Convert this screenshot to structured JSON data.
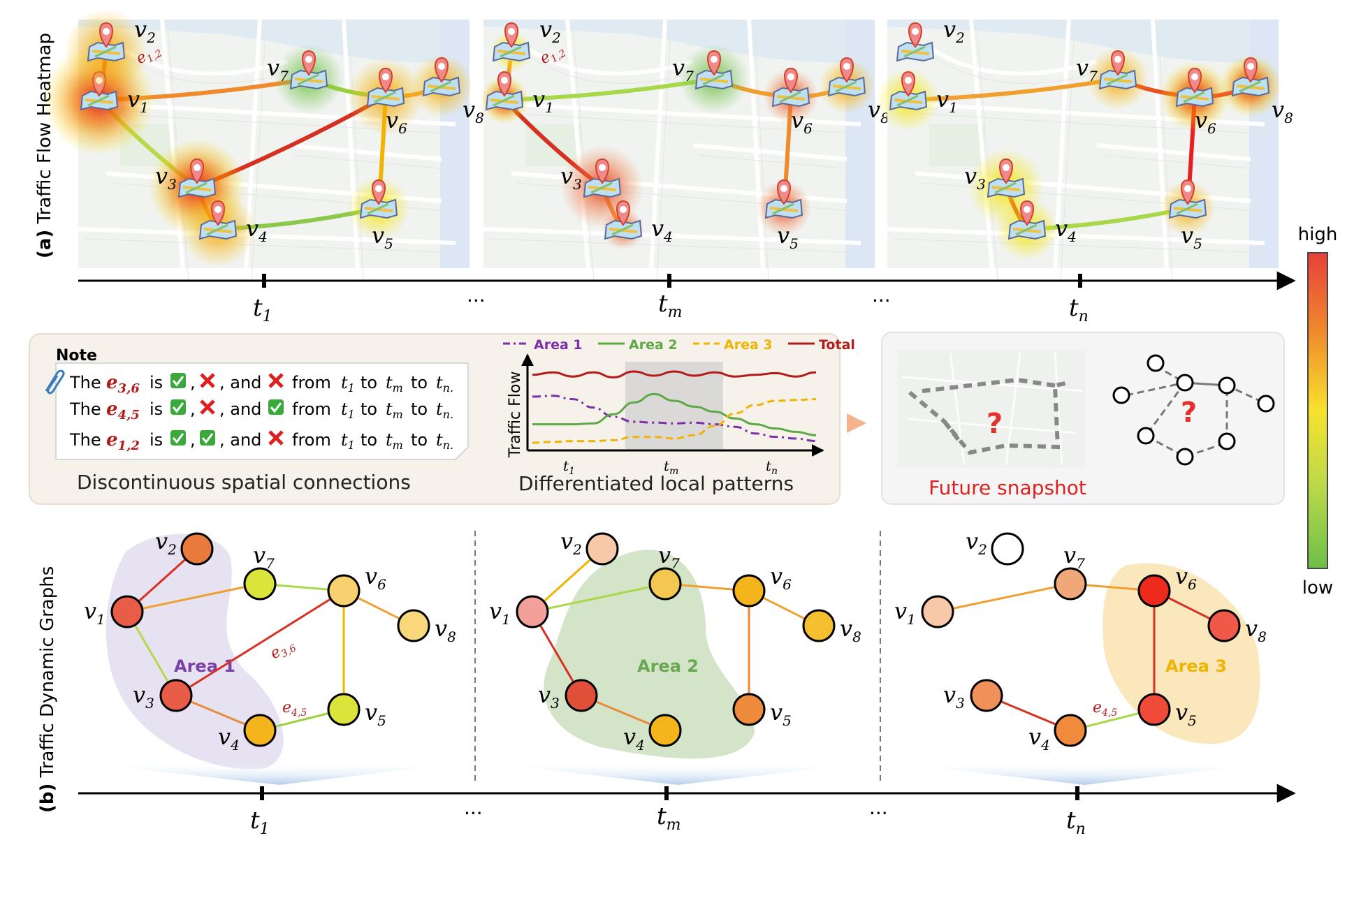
{
  "section_a": {
    "label_bold": "(a)",
    "label": "Traffic Flow Heatmap",
    "ticks": [
      "t",
      "t",
      "t"
    ],
    "tick_subs": [
      "1",
      "m",
      "n"
    ],
    "ellipsis": "..."
  },
  "section_b": {
    "label_bold": "(b)",
    "label": "Traffic Dynamic Graphs",
    "ticks": [
      "t",
      "t",
      "t"
    ],
    "tick_subs": [
      "1",
      "m",
      "n"
    ],
    "ellipsis": "..."
  },
  "node_letter": "v",
  "node_subs": [
    "1",
    "2",
    "3",
    "4",
    "5",
    "6",
    "7",
    "8"
  ],
  "note": {
    "title": "Note",
    "lines": [
      {
        "edge_sub": "3,6",
        "marks": [
          "check",
          "cross",
          "cross"
        ]
      },
      {
        "edge_sub": "4,5",
        "marks": [
          "check",
          "cross",
          "check"
        ]
      },
      {
        "edge_sub": "1,2",
        "marks": [
          "check",
          "check",
          "cross"
        ]
      }
    ],
    "word_the": "The",
    "word_is": "is",
    "word_and": "and",
    "word_from": "from",
    "word_to": "to",
    "caption": "Discontinuous spatial connections"
  },
  "chart_data": {
    "type": "line",
    "ylabel": "Traffic Flow",
    "x_ticks": [
      "t1",
      "tm",
      "tn"
    ],
    "legend_placement": "top",
    "caption": "Differentiated local patterns",
    "highlight_range": [
      0.35,
      0.65
    ],
    "series": [
      {
        "name": "Area 1",
        "color": "#7b2fa8",
        "style": "dashdot",
        "values": [
          0.6,
          0.61,
          0.57,
          0.47,
          0.36,
          0.3,
          0.29,
          0.28,
          0.29,
          0.27,
          0.24,
          0.16,
          0.12,
          0.1,
          0.07
        ]
      },
      {
        "name": "Area 2",
        "color": "#5ea845",
        "style": "solid",
        "values": [
          0.27,
          0.27,
          0.27,
          0.28,
          0.39,
          0.53,
          0.63,
          0.55,
          0.48,
          0.42,
          0.34,
          0.27,
          0.22,
          0.18,
          0.14
        ]
      },
      {
        "name": "Area 3",
        "color": "#f0b400",
        "style": "dashed",
        "values": [
          0.05,
          0.06,
          0.07,
          0.07,
          0.08,
          0.12,
          0.12,
          0.1,
          0.14,
          0.25,
          0.4,
          0.5,
          0.55,
          0.56,
          0.57
        ]
      },
      {
        "name": "Total",
        "color": "#b31b1b",
        "style": "solid",
        "values": [
          0.86,
          0.89,
          0.84,
          0.89,
          0.83,
          0.9,
          0.85,
          0.9,
          0.85,
          0.89,
          0.84,
          0.86,
          0.88,
          0.84,
          0.89
        ]
      }
    ]
  },
  "future": {
    "caption": "Future snapshot",
    "mark": "?"
  },
  "colorbar": {
    "high": "high",
    "low": "low",
    "colors": [
      "#e8403a",
      "#f08a2c",
      "#f7d22e",
      "#b8d84a",
      "#6cbf48"
    ]
  },
  "areas": {
    "area1": "Area 1",
    "area2": "Area 2",
    "area3": "Area 3"
  },
  "edge_labels": {
    "e12": "1,2",
    "e36": "3,6",
    "e45": "4,5",
    "letter": "e"
  }
}
